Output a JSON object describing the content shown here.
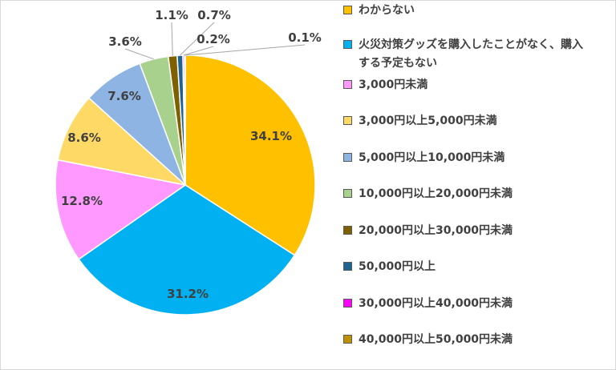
{
  "chart_data": {
    "type": "pie",
    "legend_position": "right",
    "categories": [
      "わからない",
      "火災対策グッズを購入したことがなく、購入する予定もない",
      "3,000円未満",
      "3,000円以上5,000円未満",
      "5,000円以上10,000円未満",
      "10,000円以上20,000円未満",
      "20,000円以上30,000円未満",
      "50,000円以上",
      "30,000円以上40,000円未満",
      "40,000円以上50,000円未満"
    ],
    "values": [
      34.1,
      31.2,
      12.8,
      8.6,
      7.6,
      3.6,
      1.1,
      0.7,
      0.2,
      0.1
    ],
    "data_labels": [
      "34.1%",
      "31.2%",
      "12.8%",
      "8.6%",
      "7.6%",
      "3.6%",
      "1.1%",
      "0.7%",
      "0.2%",
      "0.1%"
    ],
    "colors": [
      "#FFC000",
      "#00B0F0",
      "#FF99FF",
      "#FFD966",
      "#8EB4E3",
      "#A9D18E",
      "#7F6000",
      "#1F6391",
      "#FF00FF",
      "#BF9000"
    ]
  }
}
